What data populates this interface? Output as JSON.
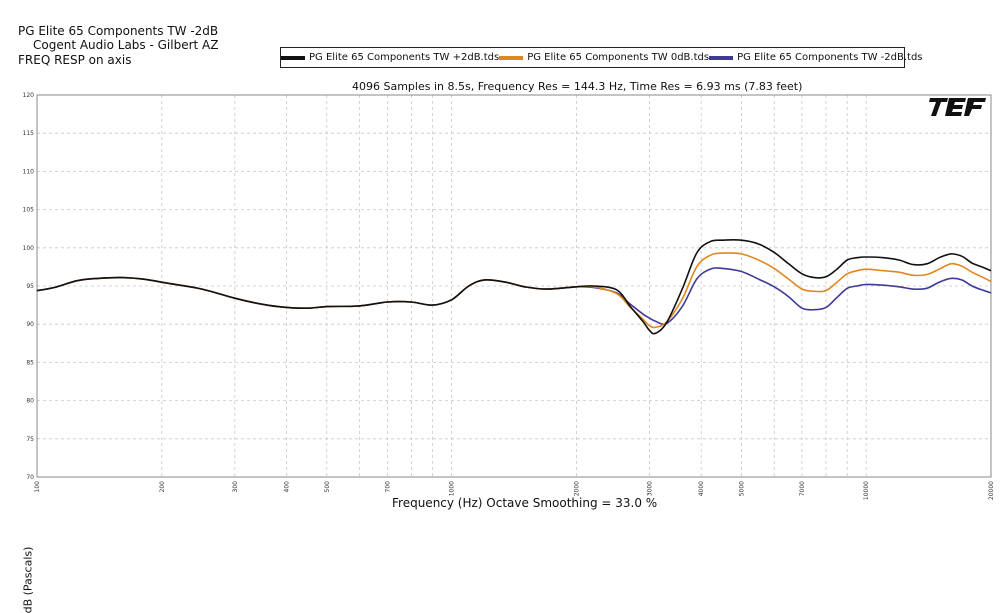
{
  "header": {
    "line1": "PG Elite 65 Components TW -2dB",
    "line2": "Cogent Audio Labs - Gilbert AZ",
    "line3": "FREQ RESP on axis"
  },
  "brand": {
    "logo_text": "TEF"
  },
  "chart_data": {
    "type": "line",
    "subtitle": "4096 Samples in 8.5s, Frequency Res = 144.3 Hz, Time Res = 6.93 ms (7.83 feet)",
    "xlabel": "Frequency (Hz) Octave Smoothing = 33.0 %",
    "ylabel": "dB (Pascals)",
    "x_scale": "log",
    "xlim": [
      100,
      20000
    ],
    "ylim": [
      70,
      120
    ],
    "x_ticks": [
      "100",
      "200",
      "300",
      "400",
      "500",
      "700",
      "1000",
      "2000",
      "3000",
      "4000",
      "5000",
      "7000",
      "10000",
      "20000"
    ],
    "y_ticks": [
      "70",
      "75",
      "80",
      "85",
      "90",
      "95",
      "100",
      "105",
      "110",
      "115",
      "120"
    ],
    "grid": true,
    "legend_position": "top",
    "series": [
      {
        "name": "PG Elite 65 Components TW +2dB.tds",
        "color": "#111111",
        "x": [
          100,
          110,
          125,
          140,
          160,
          180,
          210,
          250,
          300,
          350,
          400,
          450,
          500,
          600,
          700,
          800,
          900,
          1000,
          1100,
          1200,
          1350,
          1500,
          1700,
          2000,
          2200,
          2500,
          2700,
          2900,
          3000,
          3100,
          3300,
          3600,
          3900,
          4200,
          4500,
          5000,
          5500,
          6000,
          6500,
          7000,
          7500,
          8000,
          8500,
          9000,
          9500,
          10000,
          11000,
          12000,
          13000,
          14000,
          15000,
          16000,
          17000,
          18000,
          19000,
          20000
        ],
        "y": [
          94.4,
          94.8,
          95.7,
          96.0,
          96.1,
          95.9,
          95.3,
          94.6,
          93.4,
          92.6,
          92.2,
          92.1,
          92.3,
          92.4,
          92.9,
          92.9,
          92.5,
          93.2,
          95.0,
          95.8,
          95.5,
          94.9,
          94.6,
          94.9,
          95.0,
          94.5,
          92.3,
          90.3,
          89.2,
          88.8,
          90.2,
          94.6,
          99.3,
          100.8,
          101.0,
          101.0,
          100.5,
          99.4,
          97.9,
          96.6,
          96.1,
          96.2,
          97.2,
          98.4,
          98.7,
          98.8,
          98.7,
          98.4,
          97.8,
          97.9,
          98.7,
          99.2,
          98.9,
          98.0,
          97.5,
          97.0
        ]
      },
      {
        "name": "PG Elite 65 Components TW 0dB.tds",
        "color": "#e0871f",
        "x": [
          100,
          110,
          125,
          140,
          160,
          180,
          210,
          250,
          300,
          350,
          400,
          450,
          500,
          600,
          700,
          800,
          900,
          1000,
          1100,
          1200,
          1350,
          1500,
          1700,
          2000,
          2200,
          2500,
          2700,
          2900,
          3000,
          3100,
          3300,
          3600,
          3900,
          4200,
          4500,
          5000,
          5500,
          6000,
          6500,
          7000,
          7500,
          8000,
          8500,
          9000,
          9500,
          10000,
          11000,
          12000,
          13000,
          14000,
          15000,
          16000,
          17000,
          18000,
          19000,
          20000
        ],
        "y": [
          94.4,
          94.8,
          95.7,
          96.0,
          96.1,
          95.9,
          95.3,
          94.6,
          93.4,
          92.6,
          92.2,
          92.1,
          92.3,
          92.4,
          92.9,
          92.9,
          92.5,
          93.2,
          95.0,
          95.8,
          95.5,
          94.9,
          94.6,
          94.9,
          94.9,
          94.0,
          92.2,
          90.6,
          89.8,
          89.6,
          90.3,
          93.3,
          97.5,
          99.0,
          99.3,
          99.2,
          98.4,
          97.3,
          95.9,
          94.6,
          94.3,
          94.4,
          95.5,
          96.6,
          97.0,
          97.2,
          97.0,
          96.8,
          96.4,
          96.5,
          97.2,
          97.9,
          97.6,
          96.8,
          96.2,
          95.6
        ]
      },
      {
        "name": "PG Elite 65 Components TW -2dB.tds",
        "color": "#3f3a98",
        "x": [
          100,
          110,
          125,
          140,
          160,
          180,
          210,
          250,
          300,
          350,
          400,
          450,
          500,
          600,
          700,
          800,
          900,
          1000,
          1100,
          1200,
          1350,
          1500,
          1700,
          2000,
          2200,
          2500,
          2700,
          2900,
          3000,
          3100,
          3300,
          3600,
          3900,
          4200,
          4500,
          5000,
          5500,
          6000,
          6500,
          7000,
          7500,
          8000,
          8500,
          9000,
          9500,
          10000,
          11000,
          12000,
          13000,
          14000,
          15000,
          16000,
          17000,
          18000,
          19000,
          20000
        ],
        "y": [
          94.4,
          94.8,
          95.7,
          96.0,
          96.1,
          95.9,
          95.3,
          94.6,
          93.4,
          92.6,
          92.2,
          92.1,
          92.3,
          92.4,
          92.9,
          92.9,
          92.5,
          93.2,
          95.0,
          95.8,
          95.5,
          94.9,
          94.6,
          94.9,
          94.8,
          94.1,
          92.6,
          91.3,
          90.8,
          90.4,
          90.1,
          92.3,
          95.9,
          97.2,
          97.3,
          96.9,
          95.9,
          94.9,
          93.6,
          92.1,
          91.9,
          92.2,
          93.5,
          94.7,
          95.0,
          95.2,
          95.1,
          94.9,
          94.6,
          94.7,
          95.5,
          96.0,
          95.8,
          95.0,
          94.5,
          94.1
        ]
      }
    ]
  }
}
